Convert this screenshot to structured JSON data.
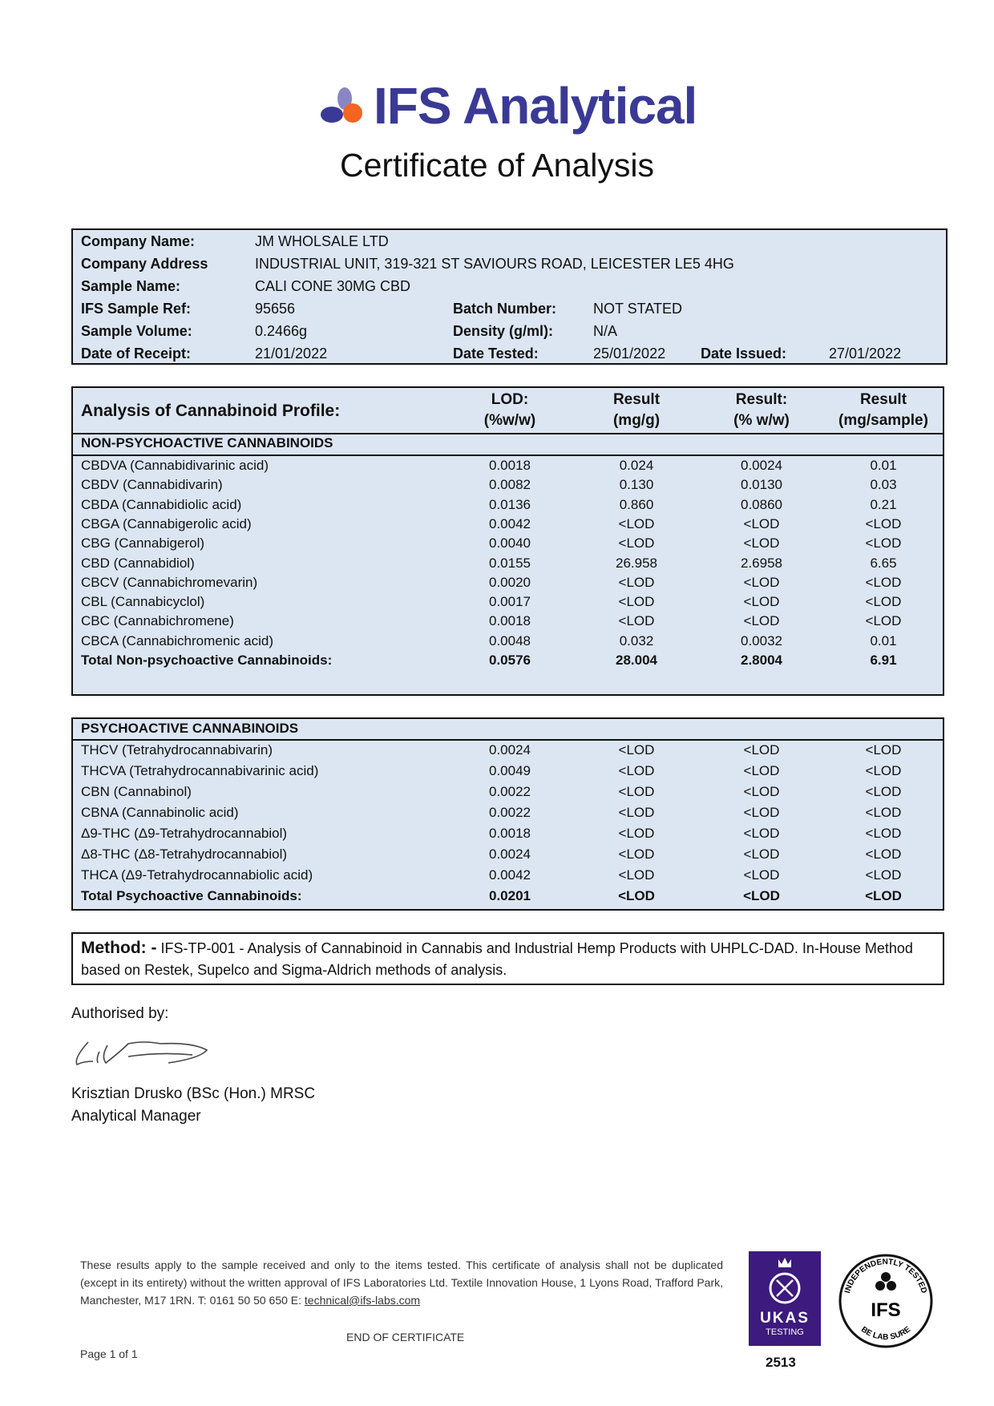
{
  "header": {
    "logo_text": "IFS Analytical",
    "title": "Certificate of Analysis",
    "brand_blue": "#3a3a96",
    "brand_orange": "#f26522",
    "brand_lilac": "#8a86c4"
  },
  "info": {
    "company_name_label": "Company Name:",
    "company_name": "JM WHOLSALE LTD",
    "company_address_label": "Company Address",
    "company_address": "INDUSTRIAL UNIT, 319-321 ST SAVIOURS ROAD, LEICESTER LE5 4HG",
    "sample_name_label": "Sample Name:",
    "sample_name": "CALI CONE 30MG CBD",
    "sample_ref_label": "IFS Sample Ref:",
    "sample_ref": "95656",
    "batch_label": "Batch Number:",
    "batch": "NOT STATED",
    "volume_label": "Sample Volume:",
    "volume": "0.2466g",
    "density_label": "Density (g/ml):",
    "density": "N/A",
    "receipt_label": "Date of Receipt:",
    "receipt": "21/01/2022",
    "tested_label": "Date Tested:",
    "tested": "25/01/2022",
    "issued_label": "Date Issued:",
    "issued": "27/01/2022"
  },
  "table": {
    "title": "Analysis of Cannabinoid Profile:",
    "columns": [
      [
        "LOD:",
        "(%w/w)"
      ],
      [
        "Result",
        "(mg/g)"
      ],
      [
        "Result:",
        "(% w/w)"
      ],
      [
        "Result",
        "(mg/sample)"
      ]
    ],
    "non_psychoactive": {
      "heading": "NON-PSYCHOACTIVE CANNABINOIDS",
      "rows": [
        [
          "CBDVA (Cannabidivarinic acid)",
          "0.0018",
          "0.024",
          "0.0024",
          "0.01"
        ],
        [
          "CBDV (Cannabidivarin)",
          "0.0082",
          "0.130",
          "0.0130",
          "0.03"
        ],
        [
          "CBDA (Cannabidiolic acid)",
          "0.0136",
          "0.860",
          "0.0860",
          "0.21"
        ],
        [
          "CBGA (Cannabigerolic acid)",
          "0.0042",
          "<LOD",
          "<LOD",
          "<LOD"
        ],
        [
          "CBG (Cannabigerol)",
          "0.0040",
          "<LOD",
          "<LOD",
          "<LOD"
        ],
        [
          "CBD (Cannabidiol)",
          "0.0155",
          "26.958",
          "2.6958",
          "6.65"
        ],
        [
          "CBCV (Cannabichromevarin)",
          "0.0020",
          "<LOD",
          "<LOD",
          "<LOD"
        ],
        [
          "CBL (Cannabicyclol)",
          "0.0017",
          "<LOD",
          "<LOD",
          "<LOD"
        ],
        [
          "CBC (Cannabichromene)",
          "0.0018",
          "<LOD",
          "<LOD",
          "<LOD"
        ],
        [
          "CBCA (Cannabichromenic acid)",
          "0.0048",
          "0.032",
          "0.0032",
          "0.01"
        ]
      ],
      "total": [
        "Total Non-psychoactive Cannabinoids:",
        "0.0576",
        "28.004",
        "2.8004",
        "6.91"
      ]
    },
    "psychoactive": {
      "heading": "PSYCHOACTIVE CANNABINOIDS",
      "rows": [
        [
          "THCV (Tetrahydrocannabivarin)",
          "0.0024",
          "<LOD",
          "<LOD",
          "<LOD"
        ],
        [
          "THCVA (Tetrahydrocannabivarinic acid)",
          "0.0049",
          "<LOD",
          "<LOD",
          "<LOD"
        ],
        [
          "CBN (Cannabinol)",
          "0.0022",
          "<LOD",
          "<LOD",
          "<LOD"
        ],
        [
          "CBNA (Cannabinolic acid)",
          "0.0022",
          "<LOD",
          "<LOD",
          "<LOD"
        ],
        [
          "Δ9-THC (Δ9-Tetrahydrocannabiol)",
          "0.0018",
          "<LOD",
          "<LOD",
          "<LOD"
        ],
        [
          "Δ8-THC (Δ8-Tetrahydrocannabiol)",
          "0.0024",
          "<LOD",
          "<LOD",
          "<LOD"
        ],
        [
          "THCA (Δ9-Tetrahydrocannabiolic acid)",
          "0.0042",
          "<LOD",
          "<LOD",
          "<LOD"
        ]
      ],
      "total": [
        "Total Psychoactive Cannabinoids:",
        "0.0201",
        "<LOD",
        "<LOD",
        "<LOD"
      ]
    }
  },
  "method": {
    "label": "Method: -",
    "text": " IFS-TP-001 - Analysis of Cannabinoid in Cannabis and Industrial Hemp Products with UHPLC-DAD. In-House Method based on Restek, Supelco and Sigma-Aldrich methods of analysis."
  },
  "authorisation": {
    "label": "Authorised by:",
    "name": "Krisztian Drusko (BSc (Hon.) MRSC",
    "role": "Analytical Manager"
  },
  "footer": {
    "disclaimer": "These results apply to the sample received and only to the items tested. This certificate of analysis shall not be duplicated (except in its entirety) without the written approval of IFS Laboratories Ltd. Textile Innovation House, 1 Lyons Road, Trafford Park, Manchester, M17 1RN. T: 0161 50 50 650 E: ",
    "email": "technical@ifs-labs.com",
    "end": "END OF CERTIFICATE",
    "page": "Page 1 of 1"
  },
  "badges": {
    "ukas_text": "UKAS",
    "ukas_sub": "TESTING",
    "ukas_number": "2513",
    "ukas_color": "#3c1a7e",
    "seal_top": "INDEPENDENTLY TESTED",
    "seal_center": "IFS",
    "seal_bottom": "BE LAB SURE"
  }
}
